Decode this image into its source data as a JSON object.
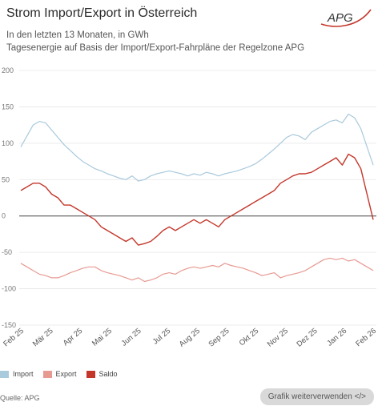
{
  "header": {
    "title": "Strom Import/Export in Österreich",
    "subtitle_line1": "In den letzten 13 Monaten, in GWh",
    "subtitle_line2": "Tagesenergie auf Basis der Import/Export-Fahrpläne der Regelzone APG",
    "logo_text": "APG"
  },
  "footer": {
    "source": "Quelle: APG",
    "reuse_button": "Grafik weiterverwenden </>"
  },
  "colors": {
    "import": "#a9c9dc",
    "export": "#e79a92",
    "saldo": "#c4362a",
    "zero_line": "#444444",
    "grid": "#e6e6e6"
  },
  "chart_data": {
    "type": "line",
    "x_labels": [
      "Feb 25",
      "Mär 25",
      "Apr 25",
      "Mai 25",
      "Jun 25",
      "Jul 25",
      "Aug 25",
      "Sep 25",
      "Okt 25",
      "Nov 25",
      "Dez 25",
      "Jan 26",
      "Feb 26"
    ],
    "y_ticks": [
      200,
      150,
      100,
      50,
      0,
      -50,
      -100,
      -150
    ],
    "ylim": [
      -150,
      200
    ],
    "grid": "horizontal",
    "legend_position": "bottom-left",
    "series": [
      {
        "name": "Import",
        "color_key": "import",
        "values": [
          95,
          110,
          125,
          130,
          128,
          118,
          108,
          98,
          90,
          82,
          75,
          70,
          65,
          62,
          58,
          55,
          52,
          50,
          55,
          48,
          50,
          55,
          58,
          60,
          62,
          60,
          58,
          55,
          58,
          56,
          60,
          58,
          55,
          58,
          60,
          62,
          65,
          68,
          72,
          78,
          85,
          92,
          100,
          108,
          112,
          110,
          105,
          115,
          120,
          125,
          130,
          132,
          128,
          140,
          135,
          120,
          95,
          70
        ]
      },
      {
        "name": "Export",
        "color_key": "export",
        "values": [
          -65,
          -70,
          -75,
          -80,
          -82,
          -85,
          -85,
          -82,
          -78,
          -75,
          -72,
          -70,
          -70,
          -75,
          -78,
          -80,
          -82,
          -85,
          -88,
          -85,
          -90,
          -88,
          -85,
          -80,
          -78,
          -80,
          -75,
          -72,
          -70,
          -72,
          -70,
          -68,
          -70,
          -65,
          -68,
          -70,
          -72,
          -75,
          -78,
          -82,
          -80,
          -78,
          -85,
          -82,
          -80,
          -78,
          -75,
          -70,
          -65,
          -60,
          -58,
          -60,
          -58,
          -62,
          -60,
          -65,
          -70,
          -75
        ]
      },
      {
        "name": "Saldo",
        "color_key": "saldo",
        "values": [
          35,
          40,
          45,
          45,
          40,
          30,
          25,
          15,
          15,
          10,
          5,
          0,
          -5,
          -15,
          -20,
          -25,
          -30,
          -35,
          -30,
          -40,
          -38,
          -35,
          -28,
          -20,
          -15,
          -20,
          -15,
          -10,
          -5,
          -10,
          -5,
          -10,
          -15,
          -5,
          0,
          5,
          10,
          15,
          20,
          25,
          30,
          35,
          45,
          50,
          55,
          58,
          58,
          60,
          65,
          70,
          75,
          80,
          70,
          85,
          80,
          65,
          30,
          -5
        ]
      }
    ]
  }
}
